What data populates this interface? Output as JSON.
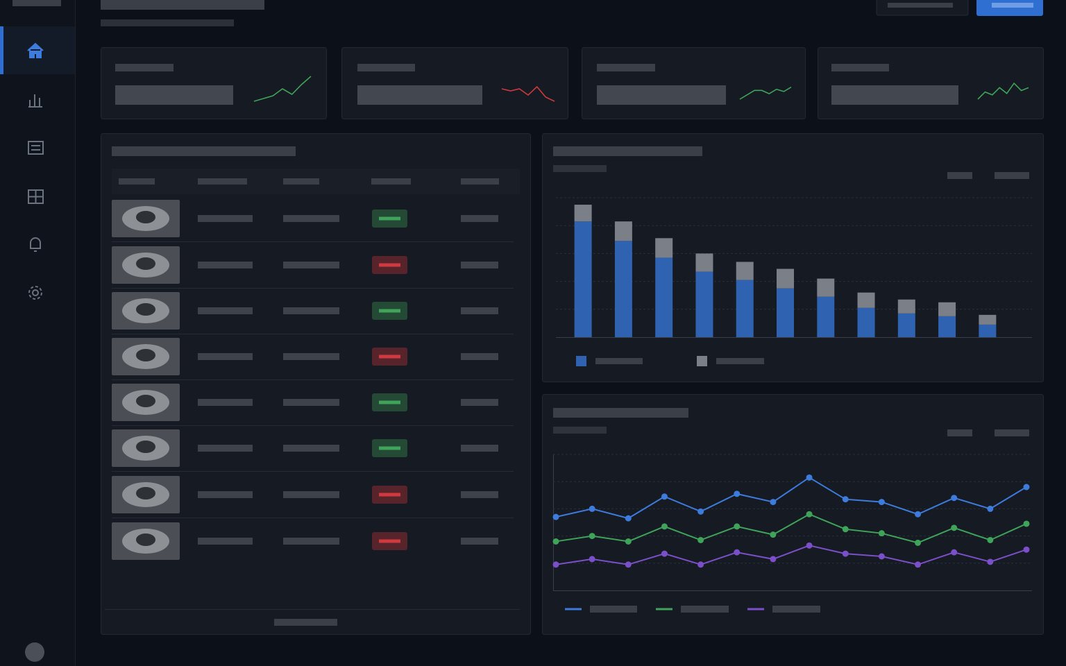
{
  "chart_data": [
    {
      "type": "sparkline",
      "color": "#3fa35a",
      "values": [
        0,
        2,
        4,
        9,
        5,
        12,
        18
      ],
      "ylim": [
        0,
        20
      ]
    },
    {
      "type": "sparkline",
      "color": "#d0393e",
      "values": [
        6,
        5,
        6,
        3,
        7,
        2,
        0
      ],
      "ylim": [
        0,
        8
      ]
    },
    {
      "type": "sparkline",
      "color": "#3fa35a",
      "values": [
        0,
        4,
        8,
        8,
        5,
        9,
        7,
        11
      ],
      "ylim": [
        0,
        12
      ]
    },
    {
      "type": "sparkline",
      "color": "#3fa35a",
      "values": [
        0,
        5,
        3,
        8,
        4,
        11,
        6,
        8
      ],
      "ylim": [
        0,
        12
      ]
    },
    {
      "type": "stacked-bar",
      "categories": [
        null,
        null,
        null,
        null,
        null,
        null,
        null,
        null,
        null,
        null,
        null
      ],
      "series": [
        {
          "color": "#2f62b0",
          "values": [
            83,
            69,
            57,
            47,
            41,
            35,
            29,
            21,
            17,
            15,
            9
          ]
        },
        {
          "color": "#7a7f88",
          "values": [
            12,
            14,
            14,
            13,
            13,
            14,
            13,
            11,
            10,
            10,
            7
          ]
        }
      ],
      "ylim": [
        0,
        100
      ],
      "yticks": [
        20,
        40,
        60,
        80,
        100
      ],
      "grid": true
    },
    {
      "type": "line",
      "categories": [
        null,
        null,
        null,
        null,
        null,
        null,
        null,
        null,
        null,
        null,
        null,
        null,
        null,
        null
      ],
      "series": [
        {
          "color": "#3d7bdc",
          "values": [
            54,
            60,
            53,
            69,
            58,
            71,
            65,
            83,
            67,
            65,
            56,
            68,
            60,
            76
          ]
        },
        {
          "color": "#3fa35a",
          "values": [
            36,
            40,
            36,
            47,
            37,
            47,
            41,
            56,
            45,
            42,
            35,
            46,
            37,
            49
          ]
        },
        {
          "color": "#7b4fc9",
          "values": [
            19,
            23,
            19,
            27,
            19,
            28,
            23,
            33,
            27,
            25,
            19,
            28,
            21,
            30
          ]
        }
      ],
      "ylim": [
        0,
        100
      ],
      "yticks": [
        20,
        40,
        60,
        80,
        100
      ],
      "grid": true
    }
  ],
  "table": {
    "rows": [
      {
        "badge_color": "#3fa35a"
      },
      {
        "badge_color": "#d0393e"
      },
      {
        "badge_color": "#3fa35a"
      },
      {
        "badge_color": "#d0393e"
      },
      {
        "badge_color": "#3fa35a"
      },
      {
        "badge_color": "#3fa35a"
      },
      {
        "badge_color": "#d0393e"
      },
      {
        "badge_color": "#d0393e"
      }
    ]
  }
}
